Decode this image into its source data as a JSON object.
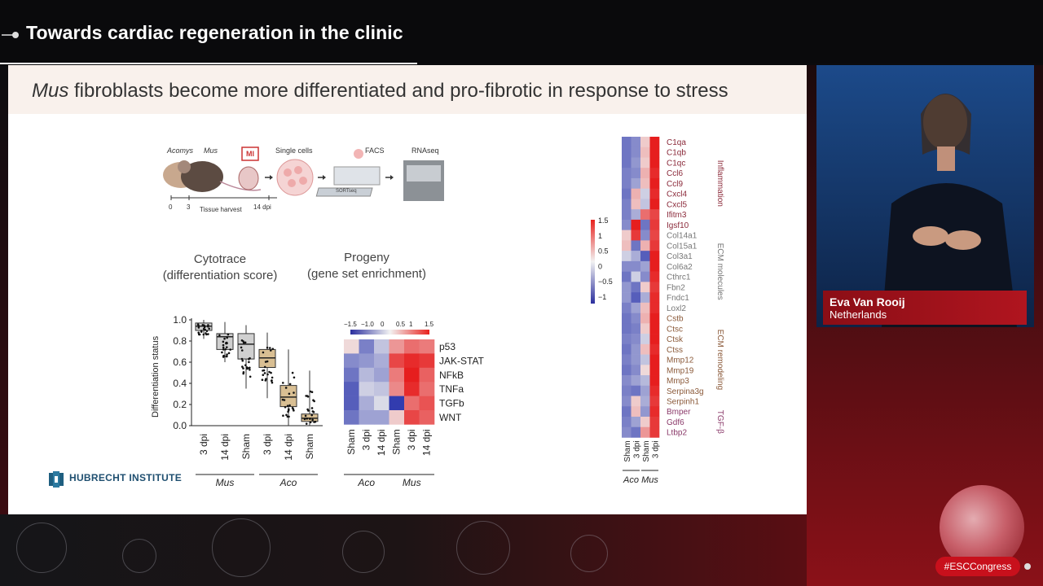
{
  "header": {
    "title": "Towards cardiac regeneration in the clinic"
  },
  "speaker": {
    "name": "Eva Van Rooij",
    "country": "Netherlands"
  },
  "hashtag": "#ESCCongress",
  "slide": {
    "title_italic": "Mus",
    "title_rest": " fibroblasts become more differentiated and pro-fibrotic in response to stress",
    "schematic": {
      "acomys": "Acomys",
      "mus": "Mus",
      "mi": "MI",
      "single_cells": "Single cells",
      "facs": "FACS",
      "rnaseq": "RNAseq",
      "sortseq": "SORTseq",
      "t0": "0",
      "t3": "3",
      "tissue_harvest": "Tissue harvest",
      "t14": "14 dpi"
    },
    "cytotrace_title": "Cytotrace",
    "cytotrace_sub": "(differentiation score)",
    "progeny_title": "Progeny",
    "progeny_sub": "(gene set enrichment)",
    "institute": "HUBRECHT INSTITUTE"
  },
  "chart_data": [
    {
      "type": "box",
      "ylabel": "Differentiation status",
      "ylim": [
        0,
        1.0
      ],
      "yticks": [
        "0.0",
        "0.2",
        "0.4",
        "0.6",
        "0.8",
        "1.0"
      ],
      "categories": [
        "3 dpi",
        "14 dpi",
        "Sham",
        "3 dpi",
        "14 dpi",
        "Sham"
      ],
      "groups": [
        {
          "label": "Mus",
          "span": [
            0,
            2
          ]
        },
        {
          "label": "Aco",
          "span": [
            3,
            5
          ]
        }
      ],
      "boxes": [
        {
          "median": 0.94,
          "q1": 0.9,
          "q3": 0.97,
          "whisker_low": 0.82,
          "whisker_high": 1.0,
          "color": "#d0d0d0"
        },
        {
          "median": 0.84,
          "q1": 0.72,
          "q3": 0.87,
          "whisker_low": 0.6,
          "whisker_high": 0.98,
          "color": "#d0d0d0"
        },
        {
          "median": 0.77,
          "q1": 0.63,
          "q3": 0.87,
          "whisker_low": 0.35,
          "whisker_high": 0.95,
          "color": "#d0d0d0"
        },
        {
          "median": 0.64,
          "q1": 0.55,
          "q3": 0.72,
          "whisker_low": 0.26,
          "whisker_high": 0.88,
          "color": "#d9bf93"
        },
        {
          "median": 0.27,
          "q1": 0.18,
          "q3": 0.38,
          "whisker_low": 0.0,
          "whisker_high": 0.72,
          "color": "#d9bf93"
        },
        {
          "median": 0.07,
          "q1": 0.04,
          "q3": 0.11,
          "whisker_low": 0.0,
          "whisker_high": 0.52,
          "color": "#d9bf93"
        }
      ]
    },
    {
      "type": "heatmap",
      "colorbar_ticks": [
        "−1.5",
        "−1.0",
        "0",
        "0.5",
        "1",
        "1.5"
      ],
      "columns": [
        "Sham",
        "3 dpi",
        "14 dpi",
        "Sham",
        "3 dpi",
        "14 dpi"
      ],
      "groups": [
        {
          "label": "Aco",
          "span": [
            0,
            2
          ]
        },
        {
          "label": "Mus",
          "span": [
            3,
            5
          ]
        }
      ],
      "rows": [
        "p53",
        "JAK-STAT",
        "NFkB",
        "TNFa",
        "TGFb",
        "WNT"
      ],
      "values": [
        [
          0.1,
          -0.9,
          -0.3,
          0.6,
          0.9,
          0.8
        ],
        [
          -0.8,
          -0.7,
          -0.5,
          1.2,
          1.4,
          1.3
        ],
        [
          -1.0,
          -0.4,
          -0.6,
          0.8,
          1.5,
          1.0
        ],
        [
          -1.2,
          -0.2,
          -0.3,
          0.7,
          1.4,
          0.9
        ],
        [
          -1.2,
          -0.5,
          -0.1,
          -1.5,
          0.9,
          1.1
        ],
        [
          -1.0,
          -0.6,
          -0.6,
          0.2,
          1.2,
          1.0
        ]
      ]
    },
    {
      "type": "heatmap",
      "colorbar_ticks": [
        "1.5",
        "1",
        "0.5",
        "0",
        "−0.5",
        "−1"
      ],
      "columns": [
        "Sham",
        "3 dpi",
        "Sham",
        "3 dpi"
      ],
      "groups": [
        {
          "label": "Aco",
          "span": [
            0,
            1
          ]
        },
        {
          "label": "Mus",
          "span": [
            2,
            3
          ]
        }
      ],
      "rows": [
        "C1qa",
        "C1qb",
        "C1qc",
        "Ccl6",
        "Ccl9",
        "Cxcl4",
        "Cxcl5",
        "Ifitm3",
        "Igsf10",
        "Col14a1",
        "Col15a1",
        "Col3a1",
        "Col6a2",
        "Cthrc1",
        "Fbn2",
        "Fndc1",
        "Loxl2",
        "Cstb",
        "Ctsc",
        "Ctsk",
        "Ctss",
        "Mmp12",
        "Mmp19",
        "Mmp3",
        "Serpina3g",
        "Serpinh1",
        "Bmper",
        "Gdf6",
        "Ltbp2"
      ],
      "row_groups": [
        {
          "label": "Inflammation",
          "span": [
            0,
            8
          ],
          "color": "#8b2a3a"
        },
        {
          "label": "ECM molecules",
          "span": [
            9,
            16
          ],
          "color": "#777777"
        },
        {
          "label": "ECM remodeling",
          "span": [
            17,
            25
          ],
          "color": "#8b5a3a"
        },
        {
          "label": "TGF-β",
          "span": [
            26,
            28
          ],
          "color": "#8b3a6a"
        }
      ],
      "values": [
        [
          -1.0,
          -0.8,
          0.2,
          1.5
        ],
        [
          -1.0,
          -0.8,
          0.3,
          1.5
        ],
        [
          -1.0,
          -0.7,
          0.2,
          1.5
        ],
        [
          -0.9,
          -0.8,
          0.4,
          1.4
        ],
        [
          -0.9,
          -0.6,
          0.3,
          1.5
        ],
        [
          -1.0,
          0.4,
          -0.2,
          1.4
        ],
        [
          -0.9,
          0.3,
          -0.3,
          1.5
        ],
        [
          -0.9,
          -0.5,
          0.9,
          1.2
        ],
        [
          -0.8,
          1.5,
          -1.0,
          1.3
        ],
        [
          0.2,
          1.3,
          -0.8,
          1.2
        ],
        [
          0.3,
          -1.0,
          0.4,
          1.3
        ],
        [
          -0.2,
          -0.5,
          -1.2,
          1.5
        ],
        [
          -0.8,
          -0.8,
          -0.6,
          1.5
        ],
        [
          -1.0,
          -0.2,
          -0.8,
          1.4
        ],
        [
          -0.7,
          -1.0,
          0.2,
          1.3
        ],
        [
          -0.7,
          -1.2,
          -0.5,
          1.4
        ],
        [
          -0.9,
          -0.6,
          0.3,
          1.4
        ],
        [
          -1.0,
          -0.8,
          0.4,
          1.5
        ],
        [
          -1.0,
          -0.9,
          0.2,
          1.5
        ],
        [
          -0.9,
          -0.8,
          -0.2,
          1.5
        ],
        [
          -1.0,
          -0.7,
          0.3,
          1.4
        ],
        [
          -0.9,
          -0.7,
          -0.3,
          1.5
        ],
        [
          -1.0,
          -0.8,
          0.1,
          1.5
        ],
        [
          -0.8,
          -0.6,
          -0.4,
          1.5
        ],
        [
          -0.9,
          -1.0,
          -0.6,
          1.4
        ],
        [
          -0.8,
          0.2,
          -0.5,
          1.3
        ],
        [
          -1.0,
          0.3,
          -0.7,
          1.4
        ],
        [
          -0.9,
          -0.6,
          0.2,
          1.3
        ],
        [
          -0.8,
          -1.0,
          0.6,
          1.3
        ]
      ]
    }
  ]
}
